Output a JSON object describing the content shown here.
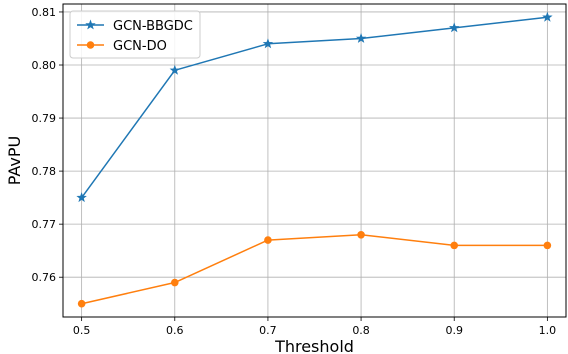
{
  "chart_data": {
    "type": "line",
    "title": "",
    "xlabel": "Threshold",
    "ylabel": "PAvPU",
    "x": [
      0.5,
      0.6,
      0.7,
      0.8,
      0.9,
      1.0
    ],
    "x_tick_labels": [
      "0.5",
      "0.6",
      "0.7",
      "0.8",
      "0.9",
      "1.0"
    ],
    "y_tick_values": [
      0.76,
      0.77,
      0.78,
      0.79,
      0.8,
      0.81
    ],
    "y_tick_labels": [
      "0.76",
      "0.77",
      "0.78",
      "0.79",
      "0.80",
      "0.81"
    ],
    "xlim": [
      0.48,
      1.02
    ],
    "ylim": [
      0.7525,
      0.8115
    ],
    "grid": true,
    "legend_position": "top-left",
    "series": [
      {
        "name": "GCN-BBGDC",
        "values": [
          0.775,
          0.799,
          0.804,
          0.805,
          0.807,
          0.809
        ],
        "color": "#1f77b4",
        "marker": "star"
      },
      {
        "name": "GCN-DO",
        "values": [
          0.755,
          0.759,
          0.767,
          0.768,
          0.766,
          0.766
        ],
        "color": "#ff7f0e",
        "marker": "circle"
      }
    ]
  }
}
